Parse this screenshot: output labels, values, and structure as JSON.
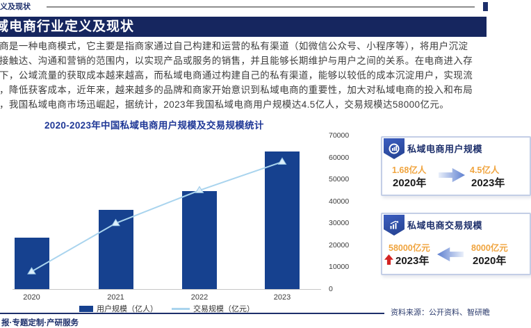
{
  "colors": {
    "banner_bg": "#16265f",
    "bar_series": "#16418f",
    "line_series": "#a9d4ee",
    "accent_navy": "#1d2f6b",
    "accent_orange": "#f0a43e",
    "red_arrow": "#d32323",
    "card_border": "#c3cee6"
  },
  "header": {
    "mini_title": "义及现状",
    "banner_title": "域电商行业定义及现状"
  },
  "intro": {
    "lines": [
      "商是一种电商模式，它主要是指商家通过自己构建和运营的私有渠道（如微信公众号、小程序等），将用户沉淀",
      "接触达、沟通和营销的范围内，以实现产品或服务的销售，并且能够长期维护与用户之间的关系。在电商进入存",
      "下，公域流量的获取成本越来越高，而私域电商通过构建自己的私有渠道，能够以较低的成本沉淀用户，实现流",
      "，降低获客成本，近年来，越来越多的品牌和商家开始意识到私域电商的重要性，加大对私域电商的投入和布局",
      "，我国私域电商市场迅崛起，据统计，2023年我国私域电商用户规模达4.5亿人，交易规模达58000亿元。"
    ]
  },
  "chart_data": {
    "type": "bar",
    "combo": "bar+line",
    "title": "2020-2023年中国私域电商用户规模及交易规模统计",
    "categories": [
      "2020",
      "2021",
      "2022",
      "2023"
    ],
    "series": [
      {
        "name": "用户规模（亿人）",
        "chart": "bar",
        "values": [
          1.68,
          2.6,
          3.2,
          4.5
        ],
        "color": "#16418f",
        "axis": "left-hidden"
      },
      {
        "name": "交易规模（亿元）",
        "chart": "line",
        "values": [
          8000,
          30000,
          45000,
          58000
        ],
        "color": "#a9d4ee",
        "axis": "right"
      }
    ],
    "left_axis": {
      "visible": false,
      "min": 0,
      "max": 5
    },
    "right_axis": {
      "min": 0,
      "max": 70000,
      "tick_step": 10000,
      "ticks": [
        "70000",
        "60000",
        "50000",
        "40000",
        "30000",
        "20000",
        "10000",
        "0"
      ]
    },
    "legend_position": "bottom",
    "grid": false
  },
  "cards": [
    {
      "title": "私域电商用户规模",
      "icon": "donut-chart-icon",
      "left_value": "1.68亿人",
      "left_year": "2020年",
      "right_value": "4.5亿人",
      "right_year": "2023年",
      "arrow_direction": "right"
    },
    {
      "title": "私域电商交易规模",
      "icon": "trend-chart-icon",
      "left_value": "58000亿元",
      "left_year": "2023年",
      "left_year_arrow": "red-up",
      "right_value": "8000亿元",
      "right_year": "2020年",
      "arrow_direction": "left"
    }
  ],
  "footer": {
    "source": "资料来源：公开资料、智研瞻",
    "services": "报·专题定制·产研服务"
  }
}
